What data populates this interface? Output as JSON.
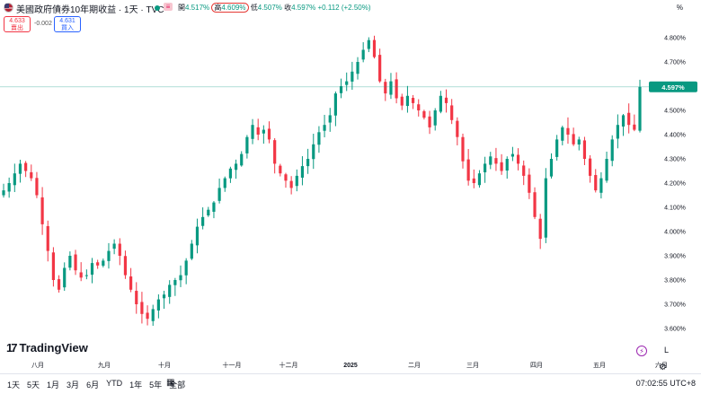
{
  "header": {
    "title": "美國政府債券10年期收益 · 1天 · TVC",
    "ohlc": {
      "open_label": "開",
      "open": "4.517%",
      "high_label": "高",
      "high": "4.609%",
      "low_label": "低",
      "low": "4.507%",
      "close_label": "收",
      "close": "4.597%",
      "change": "+0.112 (+2.50%)"
    },
    "unit": "%"
  },
  "trade": {
    "sell_price": "4.633",
    "sell_label": "賣出",
    "spread": "-0.002",
    "buy_price": "4.631",
    "buy_label": "買入"
  },
  "branding": {
    "logo_text": "TradingView"
  },
  "toolbar": {
    "ranges": [
      "1天",
      "5天",
      "1月",
      "3月",
      "6月",
      "YTD",
      "1年",
      "5年",
      "全部"
    ],
    "log_label": "L",
    "time": "07:02:55 UTC+8"
  },
  "colors": {
    "up": "#089981",
    "down": "#f23645",
    "price_line": "#089981"
  },
  "chart_data": {
    "type": "candlestick",
    "y_ticks": [
      "4.800%",
      "4.700%",
      "4.600%",
      "4.500%",
      "4.400%",
      "4.300%",
      "4.200%",
      "4.100%",
      "4.000%",
      "3.900%",
      "3.800%",
      "3.700%",
      "3.600%"
    ],
    "x_ticks": [
      "八月",
      "九月",
      "十月",
      "十一月",
      "十二月",
      "2025",
      "二月",
      "三月",
      "四月",
      "五月",
      "六月"
    ],
    "last_price_label": "4.597%",
    "last_price": 4.597,
    "ylim": [
      3.55,
      4.85
    ],
    "close_path": [
      4.17,
      4.2,
      4.24,
      4.28,
      4.25,
      4.22,
      4.15,
      4.03,
      3.92,
      3.8,
      3.76,
      3.85,
      3.9,
      3.84,
      3.81,
      3.82,
      3.87,
      3.86,
      3.88,
      3.92,
      3.95,
      3.9,
      3.82,
      3.76,
      3.7,
      3.66,
      3.64,
      3.68,
      3.72,
      3.74,
      3.78,
      3.8,
      3.82,
      3.88,
      3.95,
      4.02,
      4.06,
      4.09,
      4.12,
      4.18,
      4.22,
      4.26,
      4.28,
      4.32,
      4.39,
      4.44,
      4.4,
      4.42,
      4.38,
      4.28,
      4.24,
      4.21,
      4.18,
      4.23,
      4.27,
      4.3,
      4.36,
      4.41,
      4.44,
      4.48,
      4.57,
      4.6,
      4.62,
      4.66,
      4.7,
      4.75,
      4.79,
      4.72,
      4.62,
      4.57,
      4.62,
      4.55,
      4.52,
      4.56,
      4.53,
      4.5,
      4.47,
      4.43,
      4.5,
      4.56,
      4.53,
      4.46,
      4.39,
      4.29,
      4.21,
      4.2,
      4.24,
      4.28,
      4.31,
      4.28,
      4.25,
      4.3,
      4.32,
      4.28,
      4.23,
      4.16,
      4.06,
      3.97,
      4.22,
      4.3,
      4.38,
      4.43,
      4.4,
      4.36,
      4.38,
      4.3,
      4.23,
      4.17,
      4.22,
      4.3,
      4.38,
      4.44,
      4.48,
      4.44,
      4.42,
      4.597
    ]
  }
}
